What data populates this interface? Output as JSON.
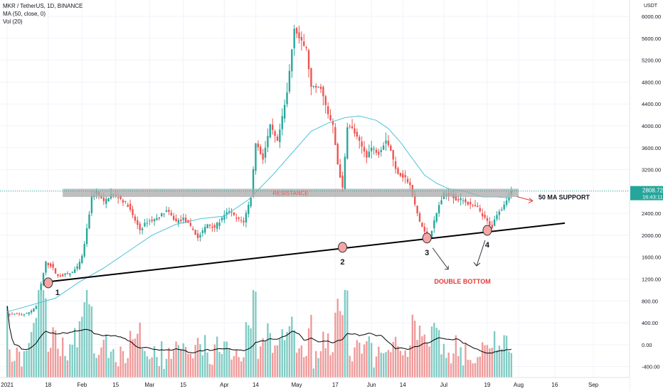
{
  "header": {
    "symbol_line": "MKR / TetherUS, 1D, BINANCE",
    "ma_line": "MA (50, close, 0)",
    "vol_line": "Vol (20)"
  },
  "price_scale": {
    "currency": "USDT",
    "last_price": "2808.72",
    "countdown": "16:43:11"
  },
  "chart_data": {
    "type": "candlestick",
    "title": "MKR / TetherUS, 1D, BINANCE",
    "x_axis": {
      "labels": [
        {
          "text": "2021",
          "day": 0
        },
        {
          "text": "18",
          "day": 17
        },
        {
          "text": "Feb",
          "day": 31
        },
        {
          "text": "15",
          "day": 45
        },
        {
          "text": "Mar",
          "day": 59
        },
        {
          "text": "15",
          "day": 73
        },
        {
          "text": "Apr",
          "day": 90
        },
        {
          "text": "14",
          "day": 103
        },
        {
          "text": "May",
          "day": 120
        },
        {
          "text": "17",
          "day": 136
        },
        {
          "text": "Jun",
          "day": 151
        },
        {
          "text": "14",
          "day": 164
        },
        {
          "text": "Jul",
          "day": 181
        },
        {
          "text": "19",
          "day": 199
        },
        {
          "text": "Aug",
          "day": 212
        },
        {
          "text": "16",
          "day": 227
        },
        {
          "text": "Sep",
          "day": 243
        }
      ],
      "range_days": [
        -3,
        258
      ]
    },
    "y_axis": {
      "ticks": [
        "6000.00",
        "5600.00",
        "5200.00",
        "4800.00",
        "4400.00",
        "4000.00",
        "3600.00",
        "3200.00",
        "2800.00",
        "2400.00",
        "2000.00",
        "1600.00",
        "1200.00",
        "800.00",
        "400.00",
        "0.00",
        "-400.00"
      ],
      "range": [
        -600,
        6300
      ],
      "label": "USDT"
    },
    "price_keypoints": [
      [
        0,
        550
      ],
      [
        8,
        560
      ],
      [
        12,
        700
      ],
      [
        14,
        1100
      ],
      [
        16,
        1500
      ],
      [
        18,
        1450
      ],
      [
        21,
        1250
      ],
      [
        26,
        1300
      ],
      [
        29,
        1400
      ],
      [
        31,
        1600
      ],
      [
        33,
        2100
      ],
      [
        35,
        2700
      ],
      [
        37,
        2800
      ],
      [
        40,
        2600
      ],
      [
        43,
        2750
      ],
      [
        46,
        2700
      ],
      [
        50,
        2550
      ],
      [
        52,
        2350
      ],
      [
        55,
        2100
      ],
      [
        58,
        2250
      ],
      [
        62,
        2300
      ],
      [
        66,
        2450
      ],
      [
        70,
        2250
      ],
      [
        73,
        2300
      ],
      [
        77,
        2100
      ],
      [
        79,
        1950
      ],
      [
        83,
        2200
      ],
      [
        86,
        2150
      ],
      [
        89,
        2300
      ],
      [
        92,
        2450
      ],
      [
        95,
        2300
      ],
      [
        98,
        2250
      ],
      [
        101,
        2700
      ],
      [
        103,
        3700
      ],
      [
        106,
        3400
      ],
      [
        109,
        4000
      ],
      [
        112,
        3700
      ],
      [
        116,
        4600
      ],
      [
        119,
        5800
      ],
      [
        121,
        5600
      ],
      [
        124,
        5400
      ],
      [
        126,
        4700
      ],
      [
        130,
        4700
      ],
      [
        133,
        4200
      ],
      [
        135,
        4000
      ],
      [
        137,
        3300
      ],
      [
        139,
        2850
      ],
      [
        141,
        4000
      ],
      [
        143,
        3950
      ],
      [
        146,
        3700
      ],
      [
        149,
        3450
      ],
      [
        151,
        3600
      ],
      [
        154,
        3500
      ],
      [
        157,
        3750
      ],
      [
        159,
        3550
      ],
      [
        161,
        3200
      ],
      [
        163,
        3100
      ],
      [
        165,
        3050
      ],
      [
        167,
        2900
      ],
      [
        169,
        2550
      ],
      [
        171,
        2250
      ],
      [
        173,
        2050
      ],
      [
        175,
        1950
      ],
      [
        177,
        2250
      ],
      [
        179,
        2550
      ],
      [
        181,
        2750
      ],
      [
        184,
        2750
      ],
      [
        186,
        2650
      ],
      [
        189,
        2650
      ],
      [
        192,
        2550
      ],
      [
        195,
        2500
      ],
      [
        197,
        2350
      ],
      [
        199,
        2250
      ],
      [
        201,
        2150
      ],
      [
        203,
        2400
      ],
      [
        205,
        2500
      ],
      [
        207,
        2650
      ],
      [
        209,
        2800
      ]
    ],
    "ma_keypoints": [
      [
        0,
        600
      ],
      [
        20,
        850
      ],
      [
        30,
        1150
      ],
      [
        40,
        1400
      ],
      [
        50,
        1700
      ],
      [
        60,
        2000
      ],
      [
        70,
        2200
      ],
      [
        80,
        2300
      ],
      [
        90,
        2350
      ],
      [
        100,
        2650
      ],
      [
        110,
        3100
      ],
      [
        118,
        3500
      ],
      [
        126,
        3900
      ],
      [
        133,
        4050
      ],
      [
        140,
        4150
      ],
      [
        146,
        4180
      ],
      [
        153,
        4100
      ],
      [
        158,
        3950
      ],
      [
        163,
        3700
      ],
      [
        168,
        3400
      ],
      [
        173,
        3100
      ],
      [
        178,
        2950
      ],
      [
        183,
        2850
      ],
      [
        190,
        2800
      ],
      [
        197,
        2700
      ],
      [
        203,
        2700
      ],
      [
        209,
        2680
      ]
    ],
    "volume_range": [
      0,
      1000
    ],
    "resistance_zone": {
      "from_day": 23,
      "to_day": 212,
      "low": 2700,
      "high": 2850,
      "label": "RESISTANCE"
    },
    "last_price_value": 2808.72,
    "trendline": {
      "start": [
        17,
        1150
      ],
      "end": [
        217,
        2130
      ]
    },
    "markers": [
      {
        "label": "1",
        "day": 17,
        "price": 1130
      },
      {
        "label": "2",
        "day": 139,
        "price": 1780
      },
      {
        "label": "3",
        "day": 174,
        "price": 1950
      },
      {
        "label": "4",
        "day": 199,
        "price": 2090
      }
    ],
    "annotations": {
      "ma_support": "50 MA SUPPORT",
      "double_bottom": "DOUBLE BOTTOM"
    },
    "colors": {
      "up": "#26a69a",
      "down": "#ef5350",
      "up_volume": "#80cbc4",
      "down_volume": "#ef9a9a",
      "ma": "#4dc3d8",
      "vol_ma": "#000000",
      "resistance_fill": "#a9a9a9",
      "resistance_text": "#ef5350",
      "trendline": "#000000",
      "marker_fill": "#f4a6a6",
      "last_price_bg": "#26a69a",
      "annotation_red": "#e53935"
    }
  }
}
